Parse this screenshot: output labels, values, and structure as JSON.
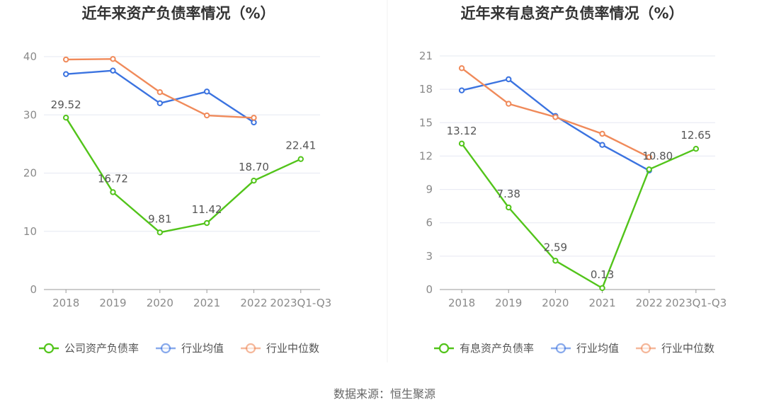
{
  "source": "数据来源：恒生聚源",
  "colors": {
    "company": "#52c41a",
    "avg": "#3b73e0",
    "median": "#f08a5a",
    "grid": "#e6e8f2",
    "axis": "#999999"
  },
  "chart_data": [
    {
      "type": "line",
      "title": "近年来资产负债率情况（%）",
      "categories": [
        "2018",
        "2019",
        "2020",
        "2021",
        "2022",
        "2023Q1-Q3"
      ],
      "ylim": [
        0,
        40
      ],
      "yticks": [
        0,
        10,
        20,
        30,
        40
      ],
      "grid": true,
      "legend_position": "bottom",
      "series": [
        {
          "name": "公司资产负债率",
          "role": "company",
          "values": [
            29.52,
            16.72,
            9.81,
            11.42,
            18.7,
            22.41
          ],
          "labels": [
            "29.52",
            "16.72",
            "9.81",
            "11.42",
            "18.70",
            "22.41"
          ]
        },
        {
          "name": "行业均值",
          "role": "avg",
          "values": [
            37.0,
            37.6,
            32.0,
            34.0,
            28.7,
            null
          ]
        },
        {
          "name": "行业中位数",
          "role": "median",
          "values": [
            39.5,
            39.6,
            33.9,
            29.9,
            29.5,
            null
          ]
        }
      ]
    },
    {
      "type": "line",
      "title": "近年来有息资产负债率情况（%）",
      "categories": [
        "2018",
        "2019",
        "2020",
        "2021",
        "2022",
        "2023Q1-Q3"
      ],
      "ylim": [
        0,
        21
      ],
      "yticks": [
        0,
        3,
        6,
        9,
        12,
        15,
        18,
        21
      ],
      "grid": true,
      "legend_position": "bottom",
      "series": [
        {
          "name": "有息资产负债率",
          "role": "company",
          "values": [
            13.12,
            7.38,
            2.59,
            0.13,
            10.8,
            12.65
          ],
          "labels": [
            "13.12",
            "7.38",
            "2.59",
            "0.13",
            "10.80",
            "12.65"
          ]
        },
        {
          "name": "行业均值",
          "role": "avg",
          "values": [
            17.9,
            18.9,
            15.6,
            13.0,
            10.7,
            null
          ]
        },
        {
          "name": "行业中位数",
          "role": "median",
          "values": [
            19.9,
            16.7,
            15.5,
            14.0,
            11.9,
            null
          ]
        }
      ]
    }
  ]
}
